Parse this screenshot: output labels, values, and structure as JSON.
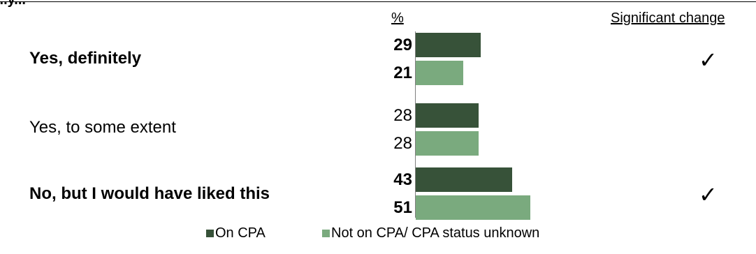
{
  "top_fragment": "...y...",
  "headers": {
    "percent": "%",
    "significant_change": "Significant change"
  },
  "colors": {
    "on_cpa": "#375239",
    "not_on_cpa": "#7aaa7e"
  },
  "check_symbol": "✓",
  "chart_data": {
    "type": "bar",
    "orientation": "horizontal",
    "categories": [
      "Yes, definitely",
      "Yes, to some extent",
      "No, but I would have liked this"
    ],
    "series": [
      {
        "name": "On CPA",
        "values": [
          29,
          28,
          43
        ]
      },
      {
        "name": "Not on CPA/ CPA status unknown",
        "values": [
          21,
          28,
          51
        ]
      }
    ],
    "significant_change": [
      true,
      false,
      true
    ],
    "bold_categories": [
      true,
      false,
      true
    ],
    "value_unit": "%",
    "xlim": [
      0,
      100
    ],
    "legend_position": "bottom",
    "grid": false
  }
}
